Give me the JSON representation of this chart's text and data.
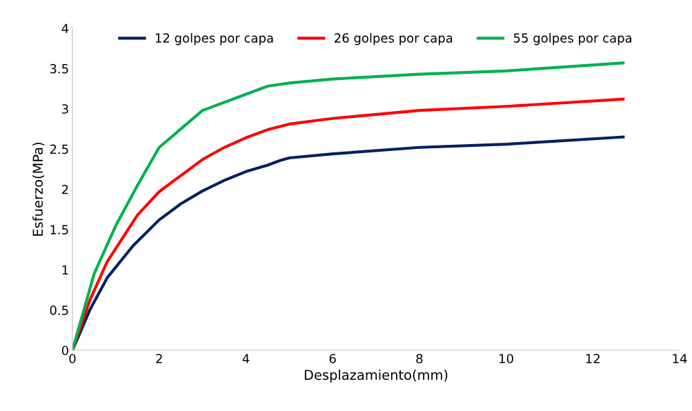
{
  "chart_data": {
    "type": "line",
    "xlabel": "Desplazamiento(mm)",
    "ylabel": "Esfuerzo(MPa)",
    "xlim": [
      0,
      14
    ],
    "xticks": [
      0,
      2,
      4,
      6,
      8,
      10,
      12,
      14
    ],
    "ylim": [
      0,
      4
    ],
    "yticks": [
      0,
      0.5,
      1,
      1.5,
      2,
      2.5,
      3,
      3.5,
      4
    ],
    "grid": false,
    "legend": "top",
    "marker": "none",
    "line_style": "solid",
    "series": [
      {
        "name": "12 golpes por capa",
        "color": "#002060",
        "x": [
          0,
          0.4,
          0.8,
          1.4,
          2,
          2.5,
          3,
          3.5,
          4,
          4.5,
          4.8,
          5,
          6,
          8,
          10,
          12.7
        ],
        "values": [
          0,
          0.5,
          0.9,
          1.3,
          1.62,
          1.82,
          1.98,
          2.11,
          2.22,
          2.3,
          2.36,
          2.39,
          2.44,
          2.52,
          2.56,
          2.65
        ]
      },
      {
        "name": "26 golpes por capa",
        "color": "#ff0000",
        "x": [
          0,
          0.4,
          0.8,
          1.5,
          2,
          2.5,
          3,
          3.5,
          4,
          4.5,
          5,
          6,
          8,
          10,
          12.7
        ],
        "values": [
          0,
          0.62,
          1.1,
          1.68,
          1.97,
          2.17,
          2.37,
          2.52,
          2.64,
          2.74,
          2.81,
          2.88,
          2.98,
          3.03,
          3.12
        ]
      },
      {
        "name": "55 golpes por capa",
        "color": "#00b050",
        "x": [
          0,
          0.5,
          1,
          1.5,
          2,
          2.5,
          3,
          3.7,
          4.5,
          5,
          6,
          8,
          10,
          12.7
        ],
        "values": [
          0,
          0.95,
          1.55,
          2.05,
          2.52,
          2.75,
          2.98,
          3.12,
          3.28,
          3.32,
          3.37,
          3.43,
          3.47,
          3.57
        ]
      }
    ]
  }
}
